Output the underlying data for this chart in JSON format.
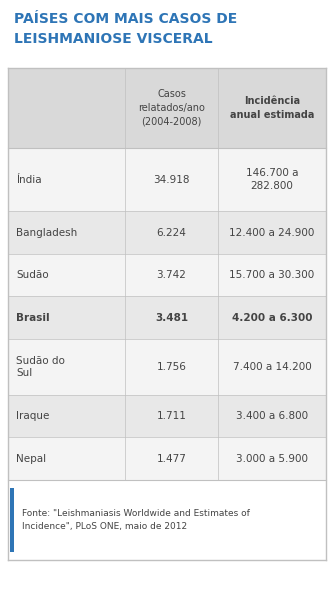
{
  "title_line1": "PAÍSES COM MAIS CASOS DE",
  "title_line2": "LEISHMANIOSE VISCERAL",
  "title_color": "#2e75b6",
  "header_col1": "Casos\nrelatados/ano\n(2004-2008)",
  "header_col2": "Incidência\nanual estimada",
  "rows": [
    {
      "country": "Índia",
      "cases": "34.918",
      "incidence": "146.700 a\n282.800",
      "bold": false
    },
    {
      "country": "Bangladesh",
      "cases": "6.224",
      "incidence": "12.400 a 24.900",
      "bold": false
    },
    {
      "country": "Sudão",
      "cases": "3.742",
      "incidence": "15.700 a 30.300",
      "bold": false
    },
    {
      "country": "Brasil",
      "cases": "3.481",
      "incidence": "4.200 a 6.300",
      "bold": true
    },
    {
      "country": "Sudão do\nSul",
      "cases": "1.756",
      "incidence": "7.400 a 14.200",
      "bold": false
    },
    {
      "country": "Iraque",
      "cases": "1.711",
      "incidence": "3.400 a 6.800",
      "bold": false
    },
    {
      "country": "Nepal",
      "cases": "1.477",
      "incidence": "3.000 a 5.900",
      "bold": false
    }
  ],
  "footer_text": "Fonte: \"Leishmaniasis Worldwide and Estimates of\nIncidence\", PLoS ONE, maio de 2012",
  "bg_color": "#ffffff",
  "row_bg_light": "#f4f4f4",
  "row_bg_mid": "#e8e8e8",
  "header_bg": "#d9d9d9",
  "border_color": "#c0c0c0",
  "text_color": "#444444",
  "accent_color": "#2e75b6",
  "fig_w": 3.34,
  "fig_h": 5.89,
  "dpi": 100
}
